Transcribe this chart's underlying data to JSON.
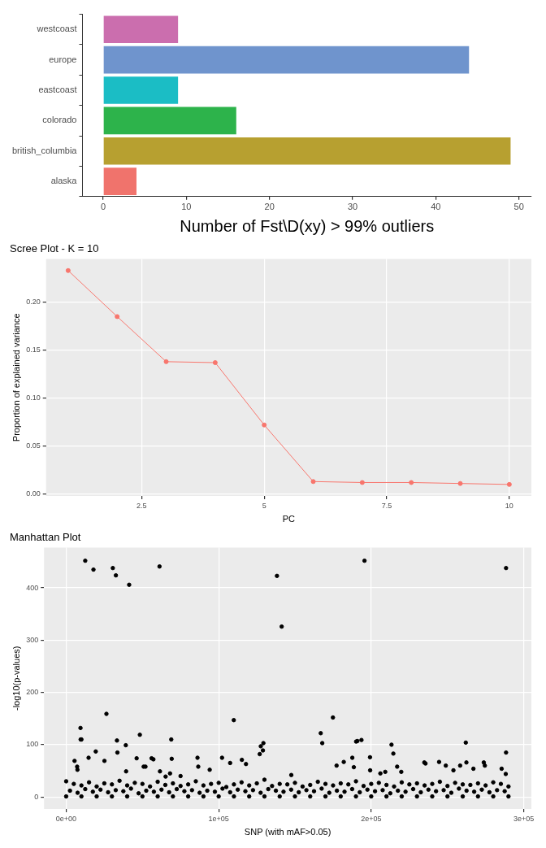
{
  "chart_data": [
    {
      "type": "bar",
      "orientation": "horizontal",
      "xlabel": "Number of Fst\\D(xy) > 99% outliers",
      "categories": [
        "westcoast",
        "europe",
        "eastcoast",
        "colorado",
        "british_columbia",
        "alaska"
      ],
      "values": [
        9,
        44,
        9,
        16,
        49,
        4
      ],
      "colors": [
        "#cb6eae",
        "#6f94cd",
        "#1bbdc5",
        "#2db34b",
        "#b7a030",
        "#f0736c"
      ],
      "xlim": [
        -2.5,
        51.5
      ],
      "xticks": [
        0,
        10,
        20,
        30,
        40,
        50
      ],
      "grid": false
    },
    {
      "type": "line",
      "title": "Scree Plot - K = 10",
      "xlabel": "PC",
      "ylabel": "Proportion of explained variance",
      "x": [
        1,
        2,
        3,
        4,
        5,
        6,
        7,
        8,
        9,
        10
      ],
      "values": [
        0.233,
        0.185,
        0.138,
        0.137,
        0.072,
        0.013,
        0.012,
        0.012,
        0.011,
        0.01
      ],
      "color": "#f8766d",
      "marker": "circle",
      "xlim": [
        0.55,
        10.45
      ],
      "xticks": [
        2.5,
        5.0,
        7.5,
        10.0
      ],
      "ylim": [
        -0.002,
        0.245
      ],
      "yticks": [
        {
          "value": 0,
          "label": "0.00"
        },
        0.05,
        {
          "value": 0.1,
          "label": "0.10"
        },
        0.15,
        {
          "value": 0.2,
          "label": "0.20"
        }
      ],
      "grid": true
    },
    {
      "type": "scatter",
      "title": "Manhattan Plot",
      "xlabel": "SNP (with mAF>0.05)",
      "ylabel": "-log10(p-values)",
      "color": "#000000",
      "marker": "circle",
      "x": [
        12500,
        17900,
        30600,
        32600,
        41300,
        61200,
        26400,
        9400,
        9500,
        10000,
        33300,
        33600,
        39100,
        48300,
        68900,
        69200,
        19400,
        109900,
        14700,
        46200,
        86100,
        102200,
        115200,
        117900,
        5500,
        25100,
        56000,
        57200,
        107500,
        126900,
        127600,
        129300,
        129000,
        86600,
        7200,
        7400,
        94100,
        50800,
        52000,
        61500,
        39300,
        65200,
        68100,
        75000,
        138200,
        141300,
        195600,
        288400,
        174900,
        166900,
        167900,
        190100,
        190900,
        193600,
        213300,
        214500,
        262000,
        288400,
        199200,
        199300,
        177300,
        182000,
        187600,
        188600,
        217000,
        234800,
        235600,
        244500,
        248900,
        258300,
        262400,
        267000,
        273800,
        274500,
        285500,
        288200,
        206000,
        209200,
        219700,
        253900,
        147600,
        0,
        5000,
        10000,
        15000,
        20000,
        25000,
        30000,
        35000,
        40000,
        45000,
        50000,
        55000,
        60000,
        65000,
        70000,
        75000,
        80000,
        85000,
        90000,
        95000,
        100000,
        105000,
        110000,
        115000,
        120000,
        125000,
        130000,
        135000,
        140000,
        145000,
        150000,
        155000,
        160000,
        165000,
        170000,
        175000,
        180000,
        185000,
        190000,
        195000,
        200000,
        205000,
        210000,
        215000,
        220000,
        225000,
        230000,
        235000,
        240000,
        245000,
        250000,
        255000,
        260000,
        265000,
        270000,
        275000,
        280000,
        285000,
        290000,
        2500,
        7500,
        12500,
        17500,
        22500,
        27500,
        32500,
        37500,
        42500,
        47500,
        52500,
        57500,
        62500,
        67500,
        72500,
        77500,
        82500,
        87500,
        92500,
        97500,
        102500,
        107500,
        112500,
        117500,
        122500,
        127500,
        132500,
        137500,
        142500,
        147500,
        152500,
        157500,
        162500,
        167500,
        172500,
        177500,
        182500,
        187500,
        192500,
        197500,
        202500,
        207500,
        212500,
        217500,
        222500,
        227500,
        232500,
        237500,
        242500,
        247500,
        252500,
        257500,
        262500,
        267500,
        272500,
        277500,
        282500,
        287500,
        0,
        10000,
        20000,
        30000,
        40000,
        50000,
        60000,
        70000,
        80000,
        90000,
        100000,
        110000,
        120000,
        130000,
        140000,
        150000,
        160000,
        170000,
        180000,
        190000,
        200000,
        210000,
        220000,
        230000,
        240000,
        250000,
        260000,
        270000,
        280000,
        290000
      ],
      "values": [
        452,
        435,
        438,
        424,
        406,
        441,
        159,
        132,
        110,
        110,
        108,
        85,
        99,
        119,
        110,
        73,
        87,
        147,
        75,
        74,
        75,
        75,
        71,
        63,
        69,
        69,
        74,
        72,
        65,
        82,
        97,
        103,
        89,
        58,
        58,
        52,
        52,
        58,
        58,
        49,
        49,
        39,
        45,
        40,
        423,
        326,
        452,
        438,
        152,
        122,
        103,
        106,
        107,
        109,
        100,
        83,
        104,
        85,
        76,
        51,
        60,
        67,
        75,
        57,
        58,
        66,
        64,
        67,
        60,
        60,
        66,
        54,
        66,
        60,
        54,
        44,
        45,
        48,
        48,
        51,
        42,
        30,
        25,
        22,
        28,
        20,
        26,
        24,
        31,
        22,
        27,
        25,
        20,
        29,
        23,
        26,
        21,
        24,
        30,
        22,
        25,
        27,
        19,
        24,
        28,
        22,
        26,
        33,
        21,
        25,
        24,
        27,
        20,
        23,
        29,
        25,
        22,
        26,
        24,
        30,
        21,
        25,
        27,
        23,
        20,
        28,
        24,
        26,
        22,
        25,
        29,
        21,
        27,
        24,
        23,
        26,
        22,
        28,
        25,
        20,
        12,
        8,
        15,
        10,
        14,
        9,
        13,
        11,
        16,
        7,
        12,
        10,
        14,
        9,
        15,
        11,
        13,
        8,
        12,
        10,
        16,
        9,
        14,
        11,
        13,
        8,
        15,
        12,
        10,
        14,
        9,
        13,
        11,
        16,
        8,
        12,
        10,
        15,
        9,
        14,
        11,
        13,
        7,
        12,
        10,
        15,
        9,
        14,
        11,
        13,
        8,
        16,
        12,
        10,
        14,
        9,
        13,
        11,
        1,
        1,
        1,
        1,
        1,
        1,
        1,
        1,
        1,
        1,
        1,
        1,
        1,
        1,
        1,
        1,
        1,
        1,
        1,
        1,
        1,
        1,
        1,
        1,
        1,
        1,
        1,
        1,
        1,
        1
      ],
      "xlim": [
        -14500,
        305000
      ],
      "xticks": [
        {
          "value": 0,
          "label": "0e+00"
        },
        {
          "value": 100000,
          "label": "1e+05"
        },
        {
          "value": 200000,
          "label": "2e+05"
        },
        {
          "value": 300000,
          "label": "3e+05"
        }
      ],
      "ylim": [
        -23,
        477
      ],
      "yticks": [
        0,
        100,
        200,
        300,
        400
      ],
      "grid": true
    }
  ]
}
